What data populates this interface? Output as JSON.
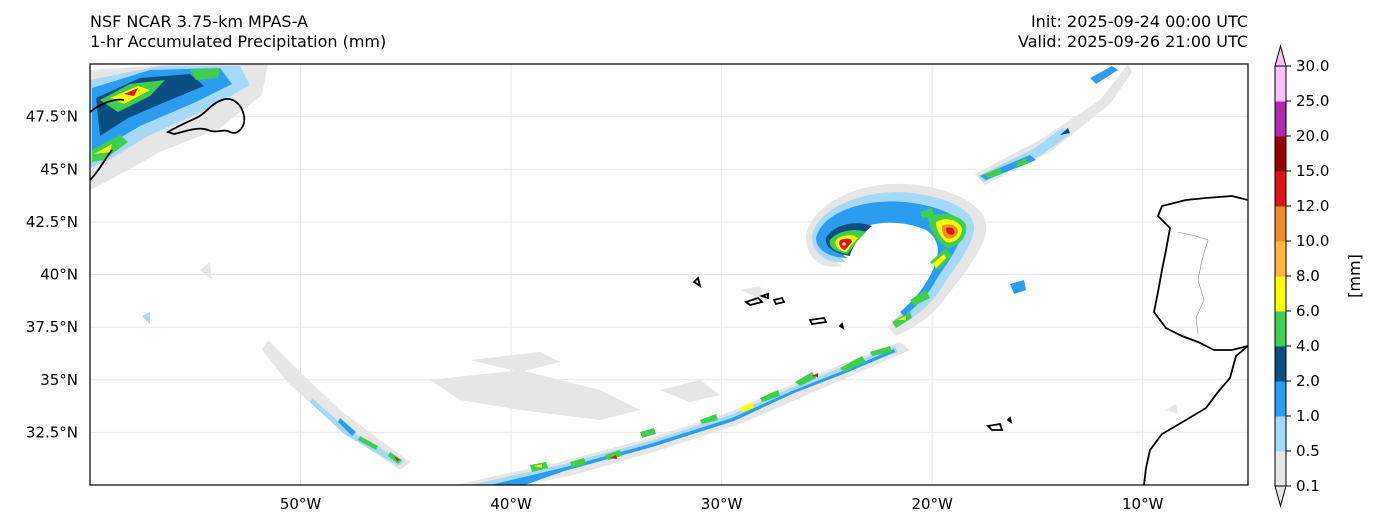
{
  "header": {
    "model_name": "NSF NCAR 3.75-km MPAS-A",
    "field_name": "1-hr Accumulated Precipitation (mm)",
    "init_time": "Init: 2025-09-24 00:00 UTC",
    "valid_time": "Valid: 2025-09-26 21:00 UTC"
  },
  "map": {
    "extent": {
      "lon_min": -60,
      "lon_max": -5,
      "lat_min": 30,
      "lat_max": 50
    },
    "lat_ticks": [
      {
        "value": 47.5,
        "label": "47.5°N"
      },
      {
        "value": 45,
        "label": "45°N"
      },
      {
        "value": 42.5,
        "label": "42.5°N"
      },
      {
        "value": 40,
        "label": "40°N"
      },
      {
        "value": 37.5,
        "label": "37.5°N"
      },
      {
        "value": 35,
        "label": "35°N"
      },
      {
        "value": 32.5,
        "label": "32.5°N"
      }
    ],
    "lon_ticks": [
      {
        "value": -50,
        "label": "50°W"
      },
      {
        "value": -40,
        "label": "40°W"
      },
      {
        "value": -30,
        "label": "30°W"
      },
      {
        "value": -20,
        "label": "20°W"
      },
      {
        "value": -10,
        "label": "10°W"
      }
    ],
    "features": {
      "newfoundland": "Newfoundland coast",
      "azores": "Azores islands",
      "madeira": "Madeira islands",
      "iberia": "Iberian Peninsula",
      "morocco": "Morocco coast"
    }
  },
  "colorbar": {
    "label": "[mm]",
    "levels": [
      "0.1",
      "0.5",
      "1.0",
      "2.0",
      "4.0",
      "6.0",
      "8.0",
      "10.0",
      "12.0",
      "15.0",
      "20.0",
      "25.0",
      "30.0"
    ],
    "colors": [
      "#e6e6e6",
      "#a6d8f7",
      "#2b9df0",
      "#0b4f82",
      "#3fcf4d",
      "#ffff00",
      "#ffb640",
      "#f08c28",
      "#d91515",
      "#960000",
      "#b027b0",
      "#f9c3f9"
    ]
  }
}
